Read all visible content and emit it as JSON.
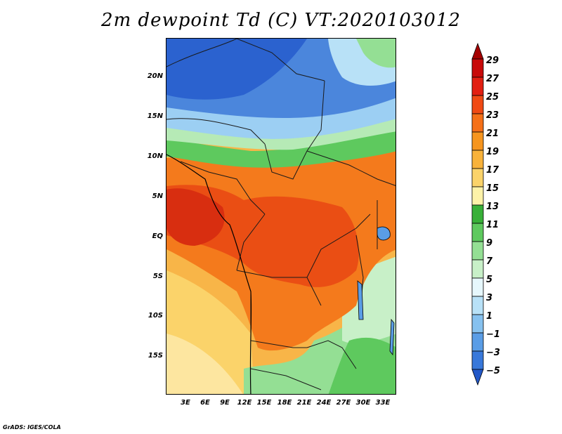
{
  "title": "2m dewpoint Td (C) VT:2020103012",
  "credit": "GrADS: IGES/COLA",
  "lat_labels": [
    "20N",
    "15N",
    "10N",
    "5N",
    "EQ",
    "5S",
    "10S",
    "15S"
  ],
  "lon_labels": [
    "3E",
    "6E",
    "9E",
    "12E",
    "15E",
    "18E",
    "21E",
    "24E",
    "27E",
    "30E",
    "33E"
  ],
  "colorbar": {
    "labels": [
      "29",
      "27",
      "25",
      "23",
      "21",
      "19",
      "17",
      "15",
      "13",
      "11",
      "9",
      "7",
      "5",
      "3",
      "1",
      "−1",
      "−3",
      "−5"
    ],
    "colors": [
      "#a50000",
      "#c80a0a",
      "#e21f12",
      "#f04a14",
      "#f57018",
      "#f6951e",
      "#f8b23a",
      "#fbd36a",
      "#fdf2a8",
      "#38b038",
      "#5ec95e",
      "#94df94",
      "#c8f0c8",
      "#e6f7fc",
      "#b8e1f7",
      "#86c1ef",
      "#5a9de6",
      "#3878da",
      "#2258c8"
    ]
  },
  "colors": {
    "deep_blue": "#2b62cf",
    "mid_blue": "#4b86dc",
    "light_blue": "#9ccff3",
    "green": "#52c052",
    "pale_green": "#b6eab6",
    "yellow": "#fde6a0",
    "orange_light": "#f8b548",
    "orange": "#f47a1c",
    "red_orange": "#ea4e14",
    "red": "#d82e10"
  }
}
